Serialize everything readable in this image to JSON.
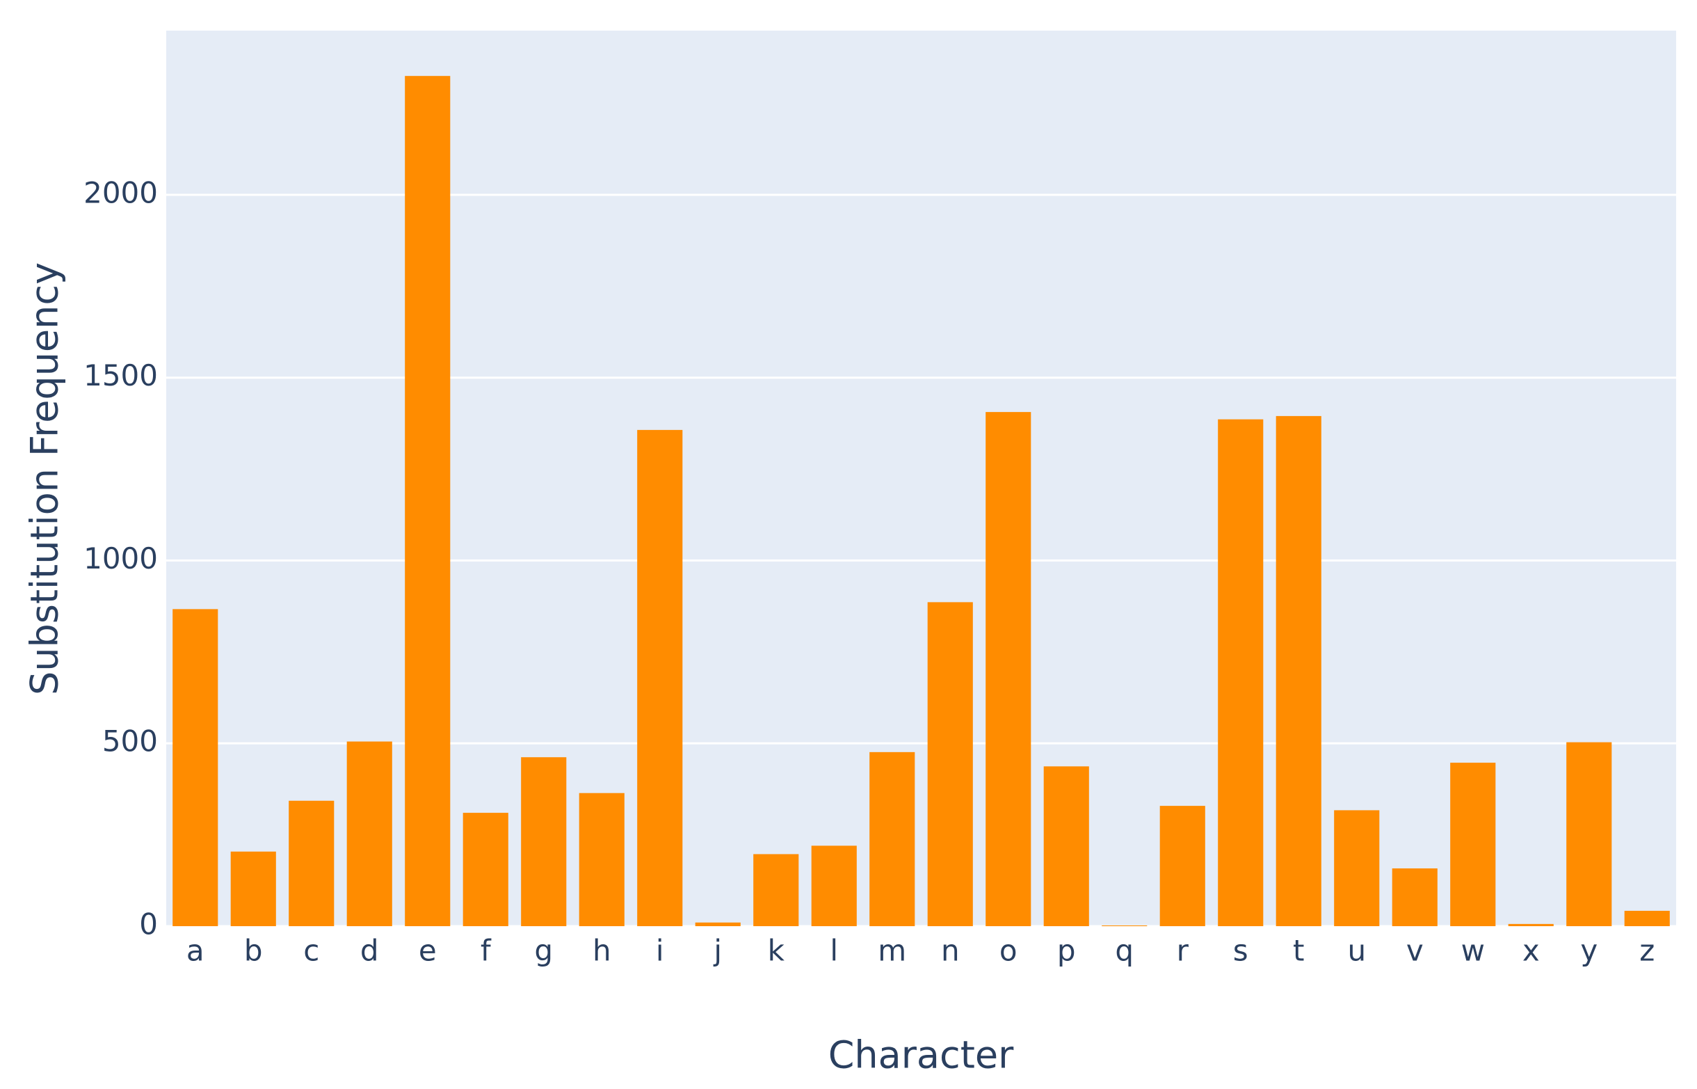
{
  "chart_data": {
    "type": "bar",
    "x_label": "Character",
    "y_label": "Substitution Frequency",
    "categories": [
      "a",
      "b",
      "c",
      "d",
      "e",
      "f",
      "g",
      "h",
      "i",
      "j",
      "k",
      "l",
      "m",
      "n",
      "o",
      "p",
      "q",
      "r",
      "s",
      "t",
      "u",
      "v",
      "w",
      "x",
      "y",
      "z"
    ],
    "values": [
      867,
      204,
      343,
      505,
      2325,
      310,
      462,
      364,
      1357,
      10,
      197,
      220,
      476,
      886,
      1406,
      437,
      2,
      329,
      1386,
      1395,
      317,
      158,
      447,
      6,
      503,
      42
    ],
    "color": "#ff8c00",
    "ylim": [
      0,
      2449
    ],
    "yticks": [
      0,
      500,
      1000,
      1500,
      2000
    ],
    "grid": true
  }
}
